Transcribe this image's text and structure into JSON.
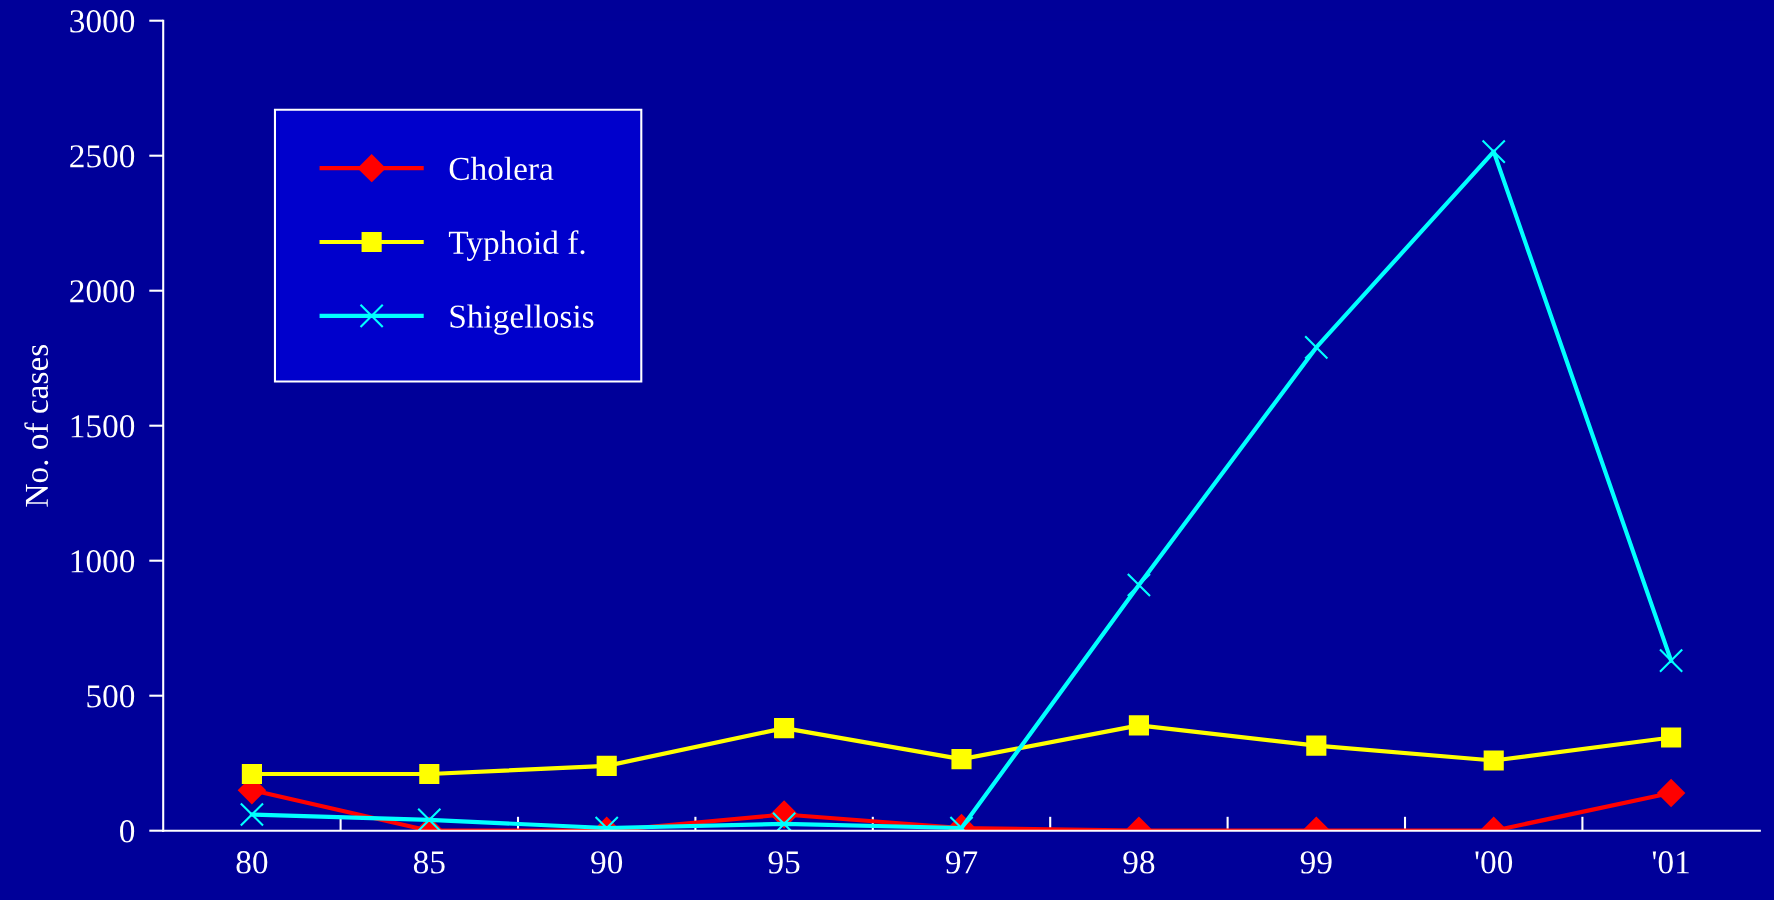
{
  "chart_data": {
    "type": "line",
    "ylabel": "No. of cases",
    "categories": [
      "80",
      "85",
      "90",
      "95",
      "97",
      "98",
      "99",
      "'00",
      "'01"
    ],
    "series": [
      {
        "name": "Cholera",
        "color": "#ff0000",
        "marker": "diamond",
        "values": [
          150,
          0,
          0,
          60,
          10,
          0,
          0,
          0,
          140
        ]
      },
      {
        "name": "Typhoid f.",
        "color": "#ffff00",
        "marker": "square",
        "values": [
          210,
          210,
          240,
          380,
          265,
          390,
          315,
          260,
          345
        ]
      },
      {
        "name": "Shigellosis",
        "color": "#00ffff",
        "marker": "cross",
        "values": [
          60,
          40,
          10,
          25,
          10,
          910,
          1790,
          2515,
          630
        ]
      }
    ],
    "ylim": [
      0,
      3000
    ],
    "yticks": [
      0,
      500,
      1000,
      1500,
      2000,
      2500,
      3000
    ],
    "grid": false,
    "legend": "top left",
    "line_style": "solid"
  }
}
